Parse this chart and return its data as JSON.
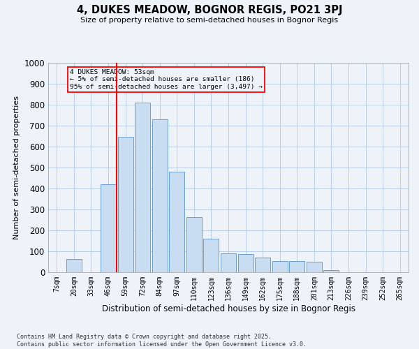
{
  "title": "4, DUKES MEADOW, BOGNOR REGIS, PO21 3PJ",
  "subtitle": "Size of property relative to semi-detached houses in Bognor Regis",
  "xlabel": "Distribution of semi-detached houses by size in Bognor Regis",
  "ylabel": "Number of semi-detached properties",
  "bin_labels": [
    "7sqm",
    "20sqm",
    "33sqm",
    "46sqm",
    "59sqm",
    "72sqm",
    "84sqm",
    "97sqm",
    "110sqm",
    "123sqm",
    "136sqm",
    "149sqm",
    "162sqm",
    "175sqm",
    "188sqm",
    "201sqm",
    "213sqm",
    "226sqm",
    "239sqm",
    "252sqm",
    "265sqm"
  ],
  "bar_heights": [
    0,
    62,
    0,
    420,
    648,
    810,
    730,
    480,
    262,
    160,
    90,
    88,
    70,
    55,
    55,
    50,
    10,
    0,
    0,
    0,
    0
  ],
  "bar_color": "#c9ddf2",
  "bar_edge_color": "#6a9fd0",
  "grid_color": "#b8cfe8",
  "bg_color": "#eef3fa",
  "vline_x_index": 3,
  "vline_color": "red",
  "annotation_text": "4 DUKES MEADOW: 53sqm\n← 5% of semi-detached houses are smaller (186)\n95% of semi-detached houses are larger (3,497) →",
  "annotation_box_color": "red",
  "ylim": [
    0,
    1000
  ],
  "yticks": [
    0,
    100,
    200,
    300,
    400,
    500,
    600,
    700,
    800,
    900,
    1000
  ],
  "footer_line1": "Contains HM Land Registry data © Crown copyright and database right 2025.",
  "footer_line2": "Contains public sector information licensed under the Open Government Licence v3.0."
}
